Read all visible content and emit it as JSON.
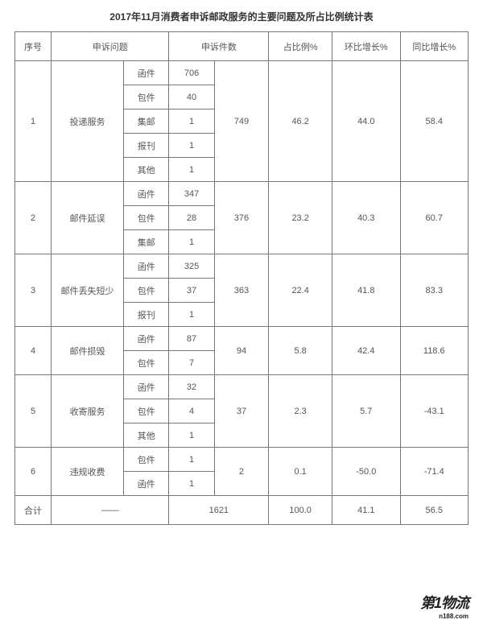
{
  "title": "2017年11月消费者申诉邮政服务的主要问题及所占比例统计表",
  "headers": [
    "序号",
    "申诉问题",
    "申诉件数",
    "占比例%",
    "环比增长%",
    "同比增长%"
  ],
  "rows": [
    {
      "idx": "1",
      "issue": "投递服务",
      "subs": [
        {
          "t": "函件",
          "v": "706"
        },
        {
          "t": "包件",
          "v": "40"
        },
        {
          "t": "集邮",
          "v": "1"
        },
        {
          "t": "报刊",
          "v": "1"
        },
        {
          "t": "其他",
          "v": "1"
        }
      ],
      "total": "749",
      "pct": "46.2",
      "mom": "44.0",
      "yoy": "58.4"
    },
    {
      "idx": "2",
      "issue": "邮件延误",
      "subs": [
        {
          "t": "函件",
          "v": "347"
        },
        {
          "t": "包件",
          "v": "28"
        },
        {
          "t": "集邮",
          "v": "1"
        }
      ],
      "total": "376",
      "pct": "23.2",
      "mom": "40.3",
      "yoy": "60.7"
    },
    {
      "idx": "3",
      "issue": "邮件丢失短少",
      "subs": [
        {
          "t": "函件",
          "v": "325"
        },
        {
          "t": "包件",
          "v": "37"
        },
        {
          "t": "报刊",
          "v": "1"
        }
      ],
      "total": "363",
      "pct": "22.4",
      "mom": "41.8",
      "yoy": "83.3"
    },
    {
      "idx": "4",
      "issue": "邮件损毁",
      "subs": [
        {
          "t": "函件",
          "v": "87"
        },
        {
          "t": "包件",
          "v": "7"
        }
      ],
      "total": "94",
      "pct": "5.8",
      "mom": "42.4",
      "yoy": "118.6"
    },
    {
      "idx": "5",
      "issue": "收寄服务",
      "subs": [
        {
          "t": "函件",
          "v": "32"
        },
        {
          "t": "包件",
          "v": "4"
        },
        {
          "t": "其他",
          "v": "1"
        }
      ],
      "total": "37",
      "pct": "2.3",
      "mom": "5.7",
      "yoy": "-43.1"
    },
    {
      "idx": "6",
      "issue": "违规收费",
      "subs": [
        {
          "t": "包件",
          "v": "1"
        },
        {
          "t": "函件",
          "v": "1"
        }
      ],
      "total": "2",
      "pct": "0.1",
      "mom": "-50.0",
      "yoy": "-71.4"
    }
  ],
  "footer": {
    "label": "合计",
    "dash": "——",
    "total": "1621",
    "pct": "100.0",
    "mom": "41.1",
    "yoy": "56.5"
  },
  "watermark": {
    "main": "第1物流",
    "sub": "n188.com"
  },
  "col_widths": {
    "idx": "8%",
    "issue": "16%",
    "subt": "10%",
    "subv": "10%",
    "total": "12%",
    "pct": "14%",
    "mom": "15%",
    "yoy": "15%"
  }
}
